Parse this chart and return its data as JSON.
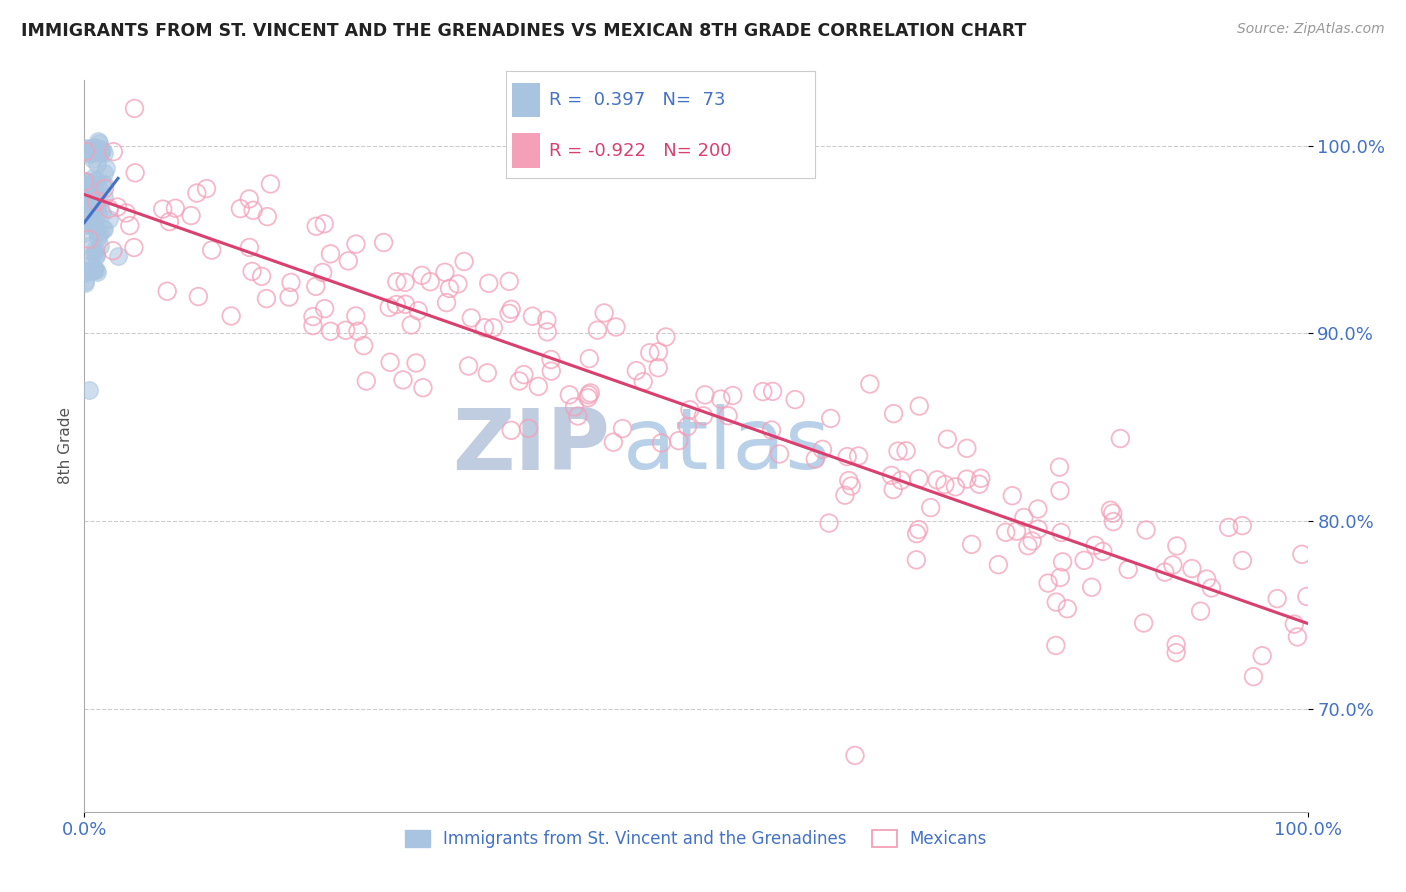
{
  "title": "IMMIGRANTS FROM ST. VINCENT AND THE GRENADINES VS MEXICAN 8TH GRADE CORRELATION CHART",
  "source": "Source: ZipAtlas.com",
  "ylabel": "8th Grade",
  "xlim": [
    0.0,
    1.0
  ],
  "ylim": [
    0.645,
    1.035
  ],
  "yticks": [
    0.7,
    0.8,
    0.9,
    1.0
  ],
  "ytick_labels": [
    "70.0%",
    "80.0%",
    "90.0%",
    "100.0%"
  ],
  "blue_R": 0.397,
  "blue_N": 73,
  "pink_R": -0.922,
  "pink_N": 200,
  "blue_color": "#a8c4e0",
  "pink_color": "#f4a0b8",
  "blue_line_color": "#4472c4",
  "pink_line_color": "#d94070",
  "legend_blue_text_color": "#4472c4",
  "legend_pink_text_color": "#d94070",
  "axis_color": "#4472c4",
  "grid_color": "#cccccc",
  "title_color": "#222222",
  "watermark_zip_color": "#c0cce0",
  "watermark_atlas_color": "#b8d0e8",
  "background_color": "#ffffff"
}
